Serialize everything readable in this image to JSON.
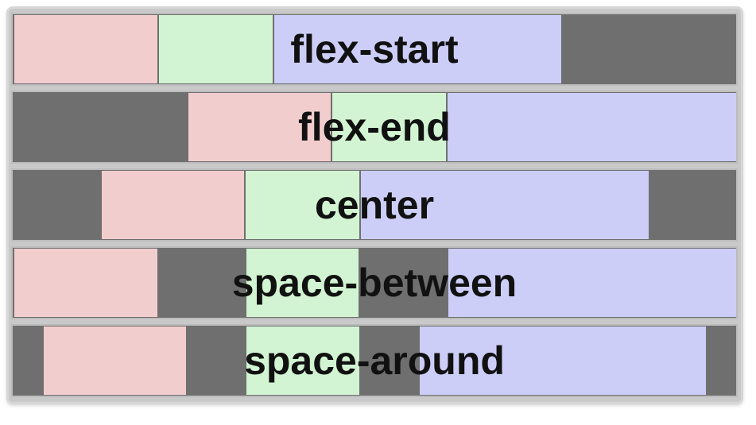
{
  "colors": {
    "container": "#6f6f6f",
    "item_1": "#f2cdcd",
    "item_2": "#d2f4d2",
    "item_3": "#cccef8"
  },
  "rows": [
    {
      "label": "flex-start"
    },
    {
      "label": "flex-end"
    },
    {
      "label": "center"
    },
    {
      "label": "space-between"
    },
    {
      "label": "space-around"
    }
  ]
}
